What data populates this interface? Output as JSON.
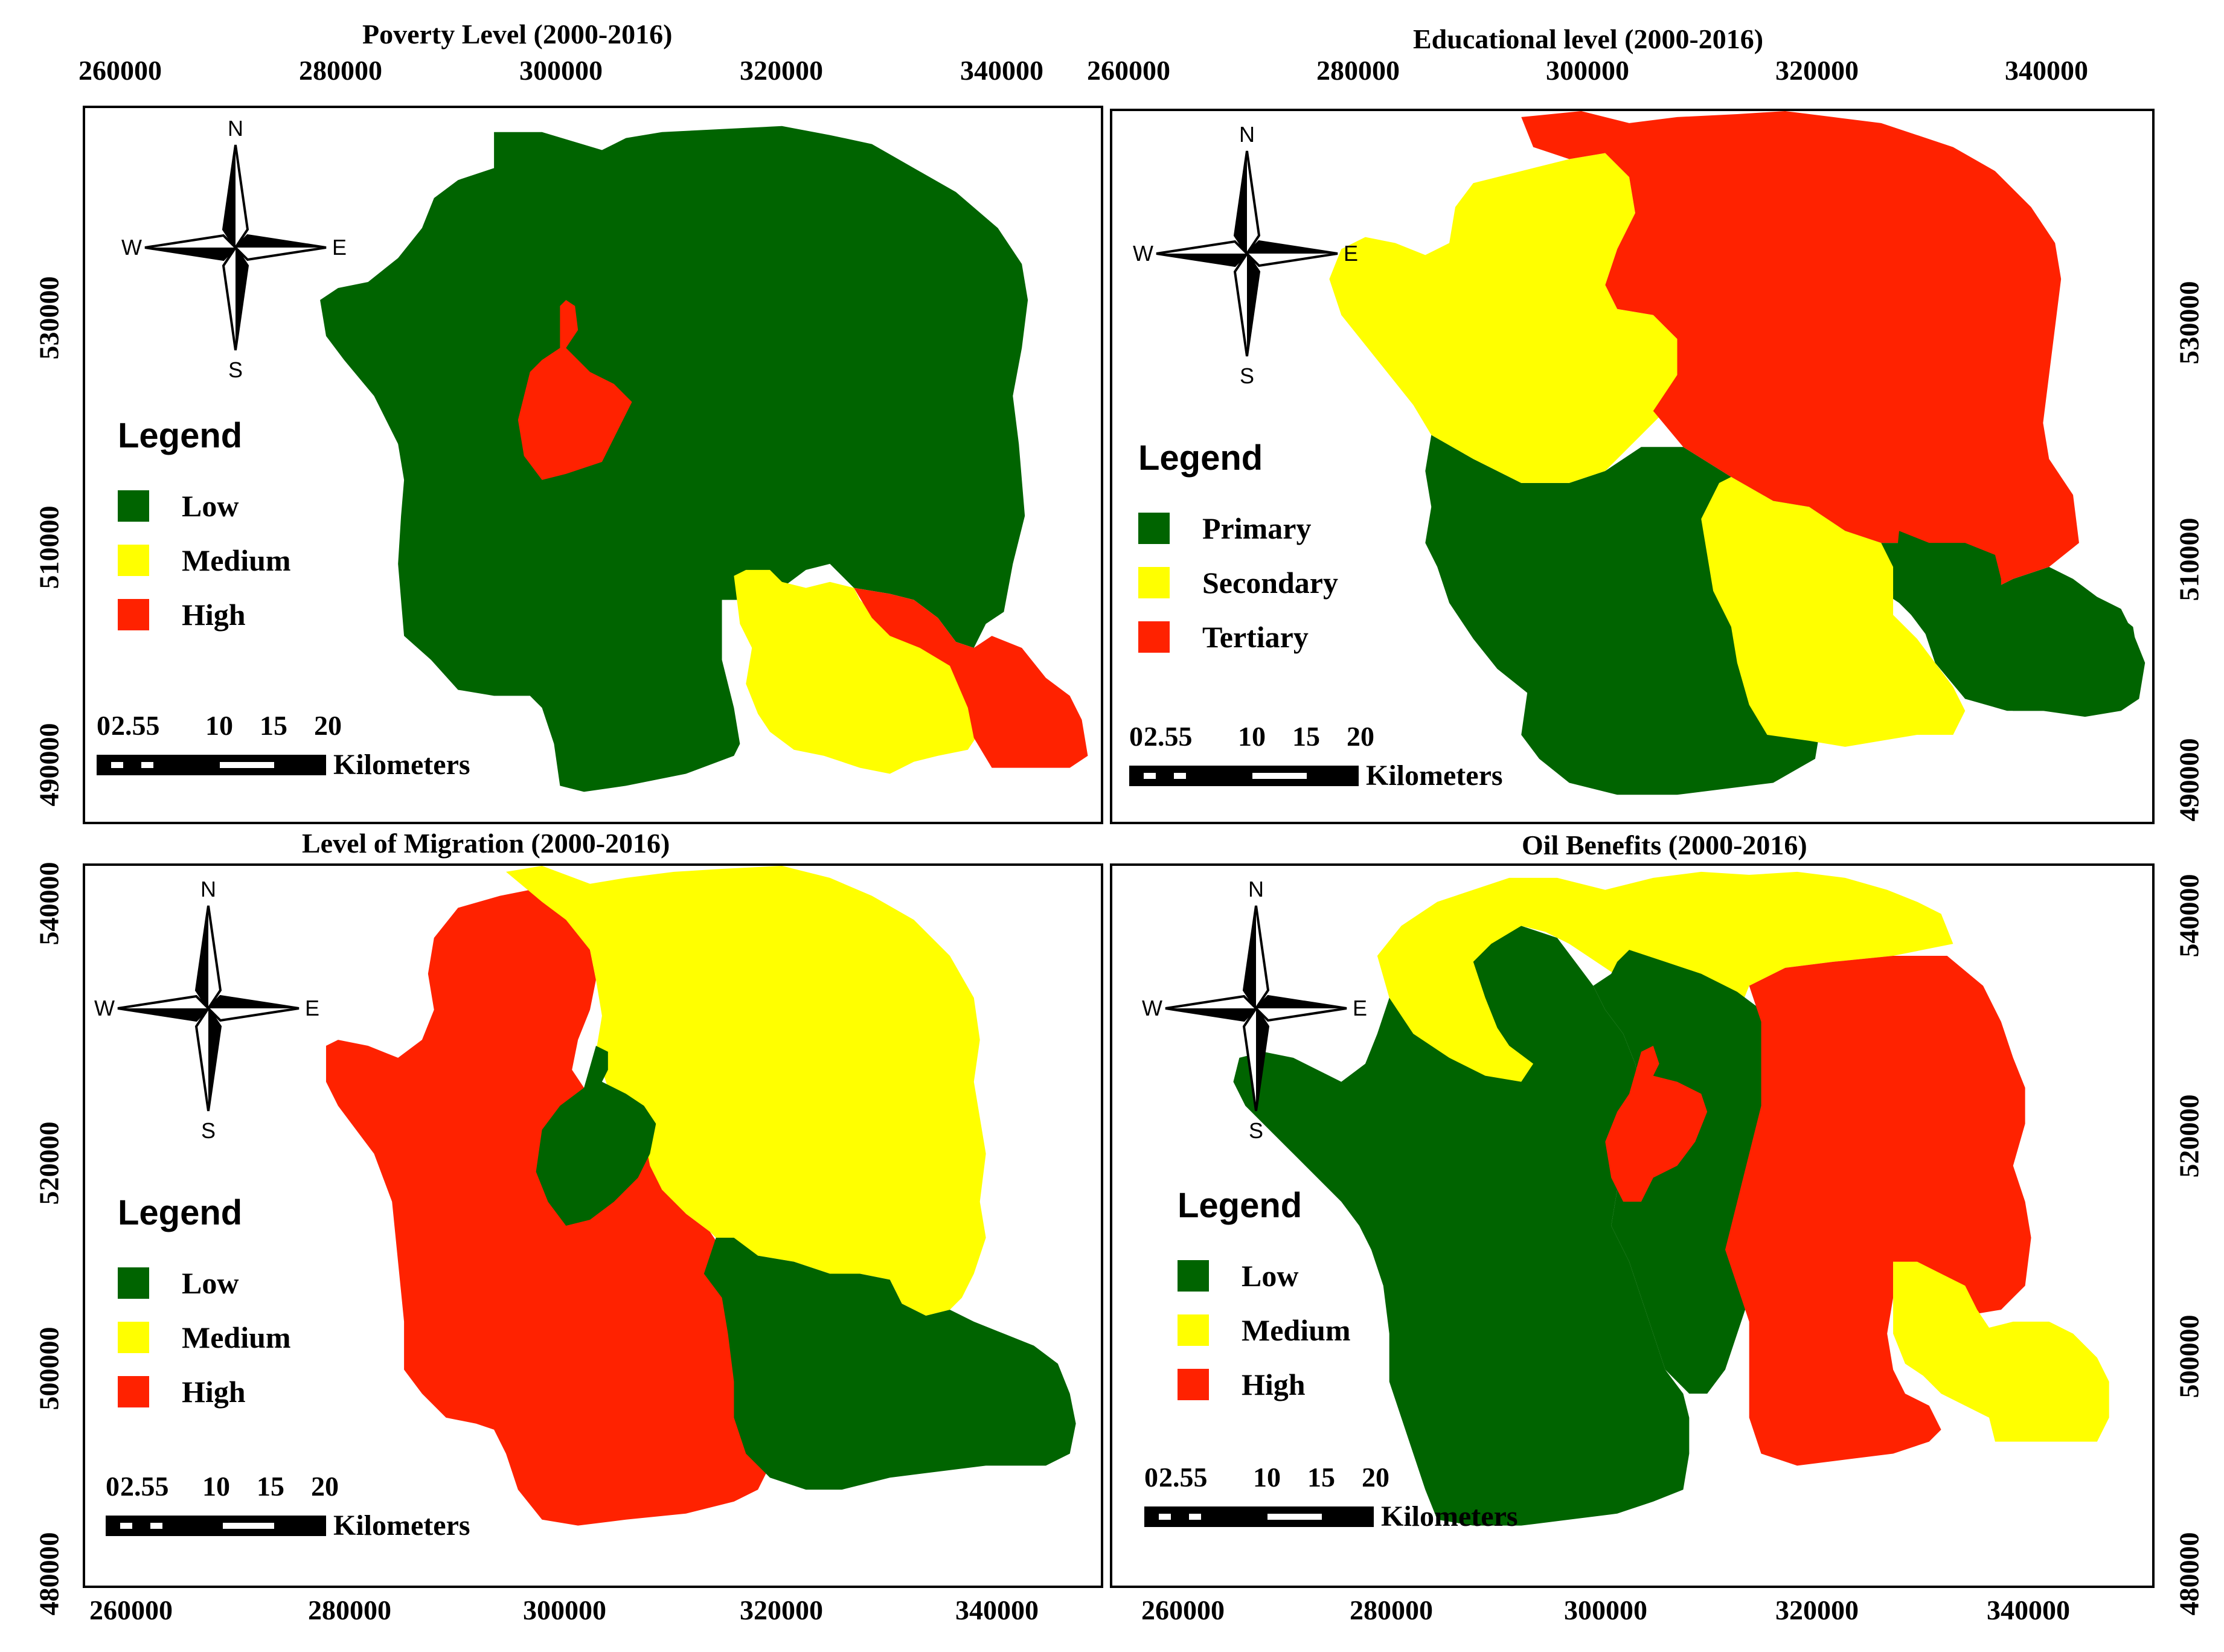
{
  "panels": [
    {
      "id": "poverty",
      "title": "Poverty Level (2000-2016)",
      "legend_title": "Legend",
      "legend": [
        {
          "label": "Low",
          "color": "#006400"
        },
        {
          "label": "Medium",
          "color": "#ffff00"
        },
        {
          "label": "High",
          "color": "#ff2200"
        }
      ]
    },
    {
      "id": "education",
      "title": "Educational level  (2000-2016)",
      "legend_title": "Legend",
      "legend": [
        {
          "label": "Primary",
          "color": "#006400"
        },
        {
          "label": "Secondary",
          "color": "#ffff00"
        },
        {
          "label": "Tertiary",
          "color": "#ff2200"
        }
      ]
    },
    {
      "id": "migration",
      "title": "Level of Migration (2000-2016)",
      "legend_title": "Legend",
      "legend": [
        {
          "label": "Low",
          "color": "#006400"
        },
        {
          "label": "Medium",
          "color": "#ffff00"
        },
        {
          "label": "High",
          "color": "#ff2200"
        }
      ]
    },
    {
      "id": "oil",
      "title": "Oil Benefits  (2000-2016)",
      "legend_title": "Legend",
      "legend": [
        {
          "label": "Low",
          "color": "#006400"
        },
        {
          "label": "Medium",
          "color": "#ffff00"
        },
        {
          "label": "High",
          "color": "#ff2200"
        }
      ]
    }
  ],
  "compass": {
    "n": "N",
    "s": "S",
    "e": "E",
    "w": "W"
  },
  "scalebar": {
    "labels": [
      "0",
      "2.5",
      "5",
      "10",
      "15",
      "20"
    ],
    "unit": "Kilometers"
  },
  "axes": {
    "top_x": [
      "260000",
      "280000",
      "300000",
      "320000",
      "340000"
    ],
    "bottom_x": [
      "260000",
      "280000",
      "300000",
      "320000",
      "340000"
    ],
    "y_top_panels": [
      "490000",
      "510000",
      "530000"
    ],
    "y_bottom_panels": [
      "480000",
      "500000",
      "520000",
      "540000"
    ]
  },
  "colors": {
    "low": "#006400",
    "medium": "#ffff00",
    "high": "#ff2200"
  }
}
